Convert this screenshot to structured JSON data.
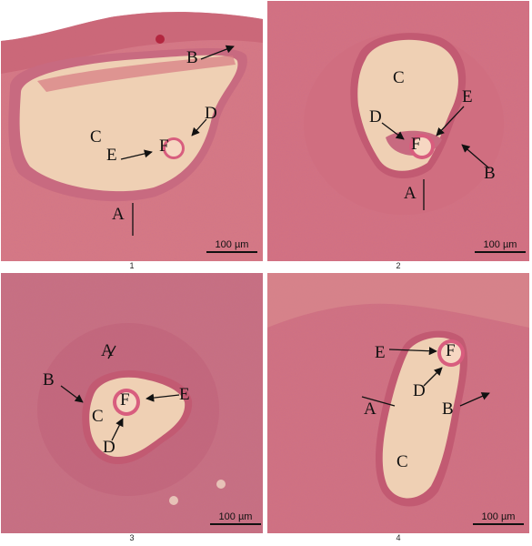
{
  "colors": {
    "stroma": "#d5747f",
    "stroma_dark": "#b94d65",
    "cumulus": "#c86a80",
    "antrum": "#efd0b4",
    "theca": "#c55c74",
    "oocyte": "#f6d7c2",
    "zona": "#d85d7e",
    "background": "#ffffff"
  },
  "panels": [
    {
      "caption": "1",
      "scale": "100 µm",
      "labels": {
        "A": "A",
        "B": "B",
        "C": "C",
        "D": "D",
        "E": "E",
        "F": "F"
      }
    },
    {
      "caption": "2",
      "scale": "100 µm",
      "labels": {
        "A": "A",
        "B": "B",
        "C": "C",
        "D": "D",
        "E": "E",
        "F": "F"
      }
    },
    {
      "caption": "3",
      "scale": "100 µm",
      "labels": {
        "A": "A",
        "B": "B",
        "C": "C",
        "D": "D",
        "E": "E",
        "F": "F"
      }
    },
    {
      "caption": "4",
      "scale": "100 µm",
      "labels": {
        "A": "A",
        "B": "B",
        "C": "C",
        "D": "D",
        "E": "E",
        "F": "F"
      }
    }
  ]
}
